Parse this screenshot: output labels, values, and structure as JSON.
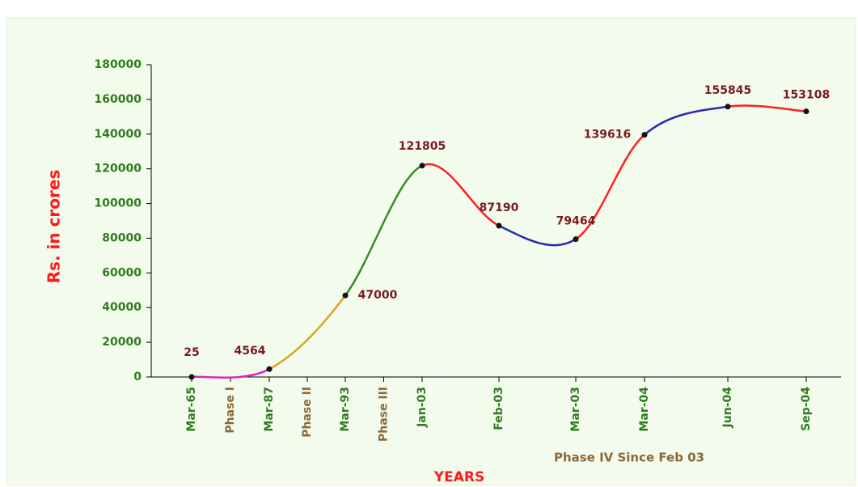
{
  "chart_data": {
    "type": "line",
    "y_label": "Rs. in crores",
    "x_label": "YEARS",
    "annotation": "Phase IV Since Feb 03",
    "categories": [
      "Mar-65",
      "Mar-87",
      "Mar-93",
      "Jan-03",
      "Feb-03",
      "Mar-03",
      "Mar-04",
      "Jun-04",
      "Sep-04"
    ],
    "values": [
      25,
      4564,
      47000,
      121805,
      87190,
      79464,
      139616,
      155845,
      153108
    ],
    "phase_labels": [
      "Phase I",
      "Phase II",
      "Phase III"
    ],
    "segment_colors": [
      "#e020c0",
      "#e0a020",
      "#3a8a2a",
      "#ff2020",
      "#2a2ab0",
      "#ff2020",
      "#2a2ab0",
      "#ff2020"
    ],
    "ylim": [
      0,
      180000
    ],
    "yticks": [
      0,
      20000,
      40000,
      60000,
      80000,
      100000,
      120000,
      140000,
      160000,
      180000
    ]
  }
}
